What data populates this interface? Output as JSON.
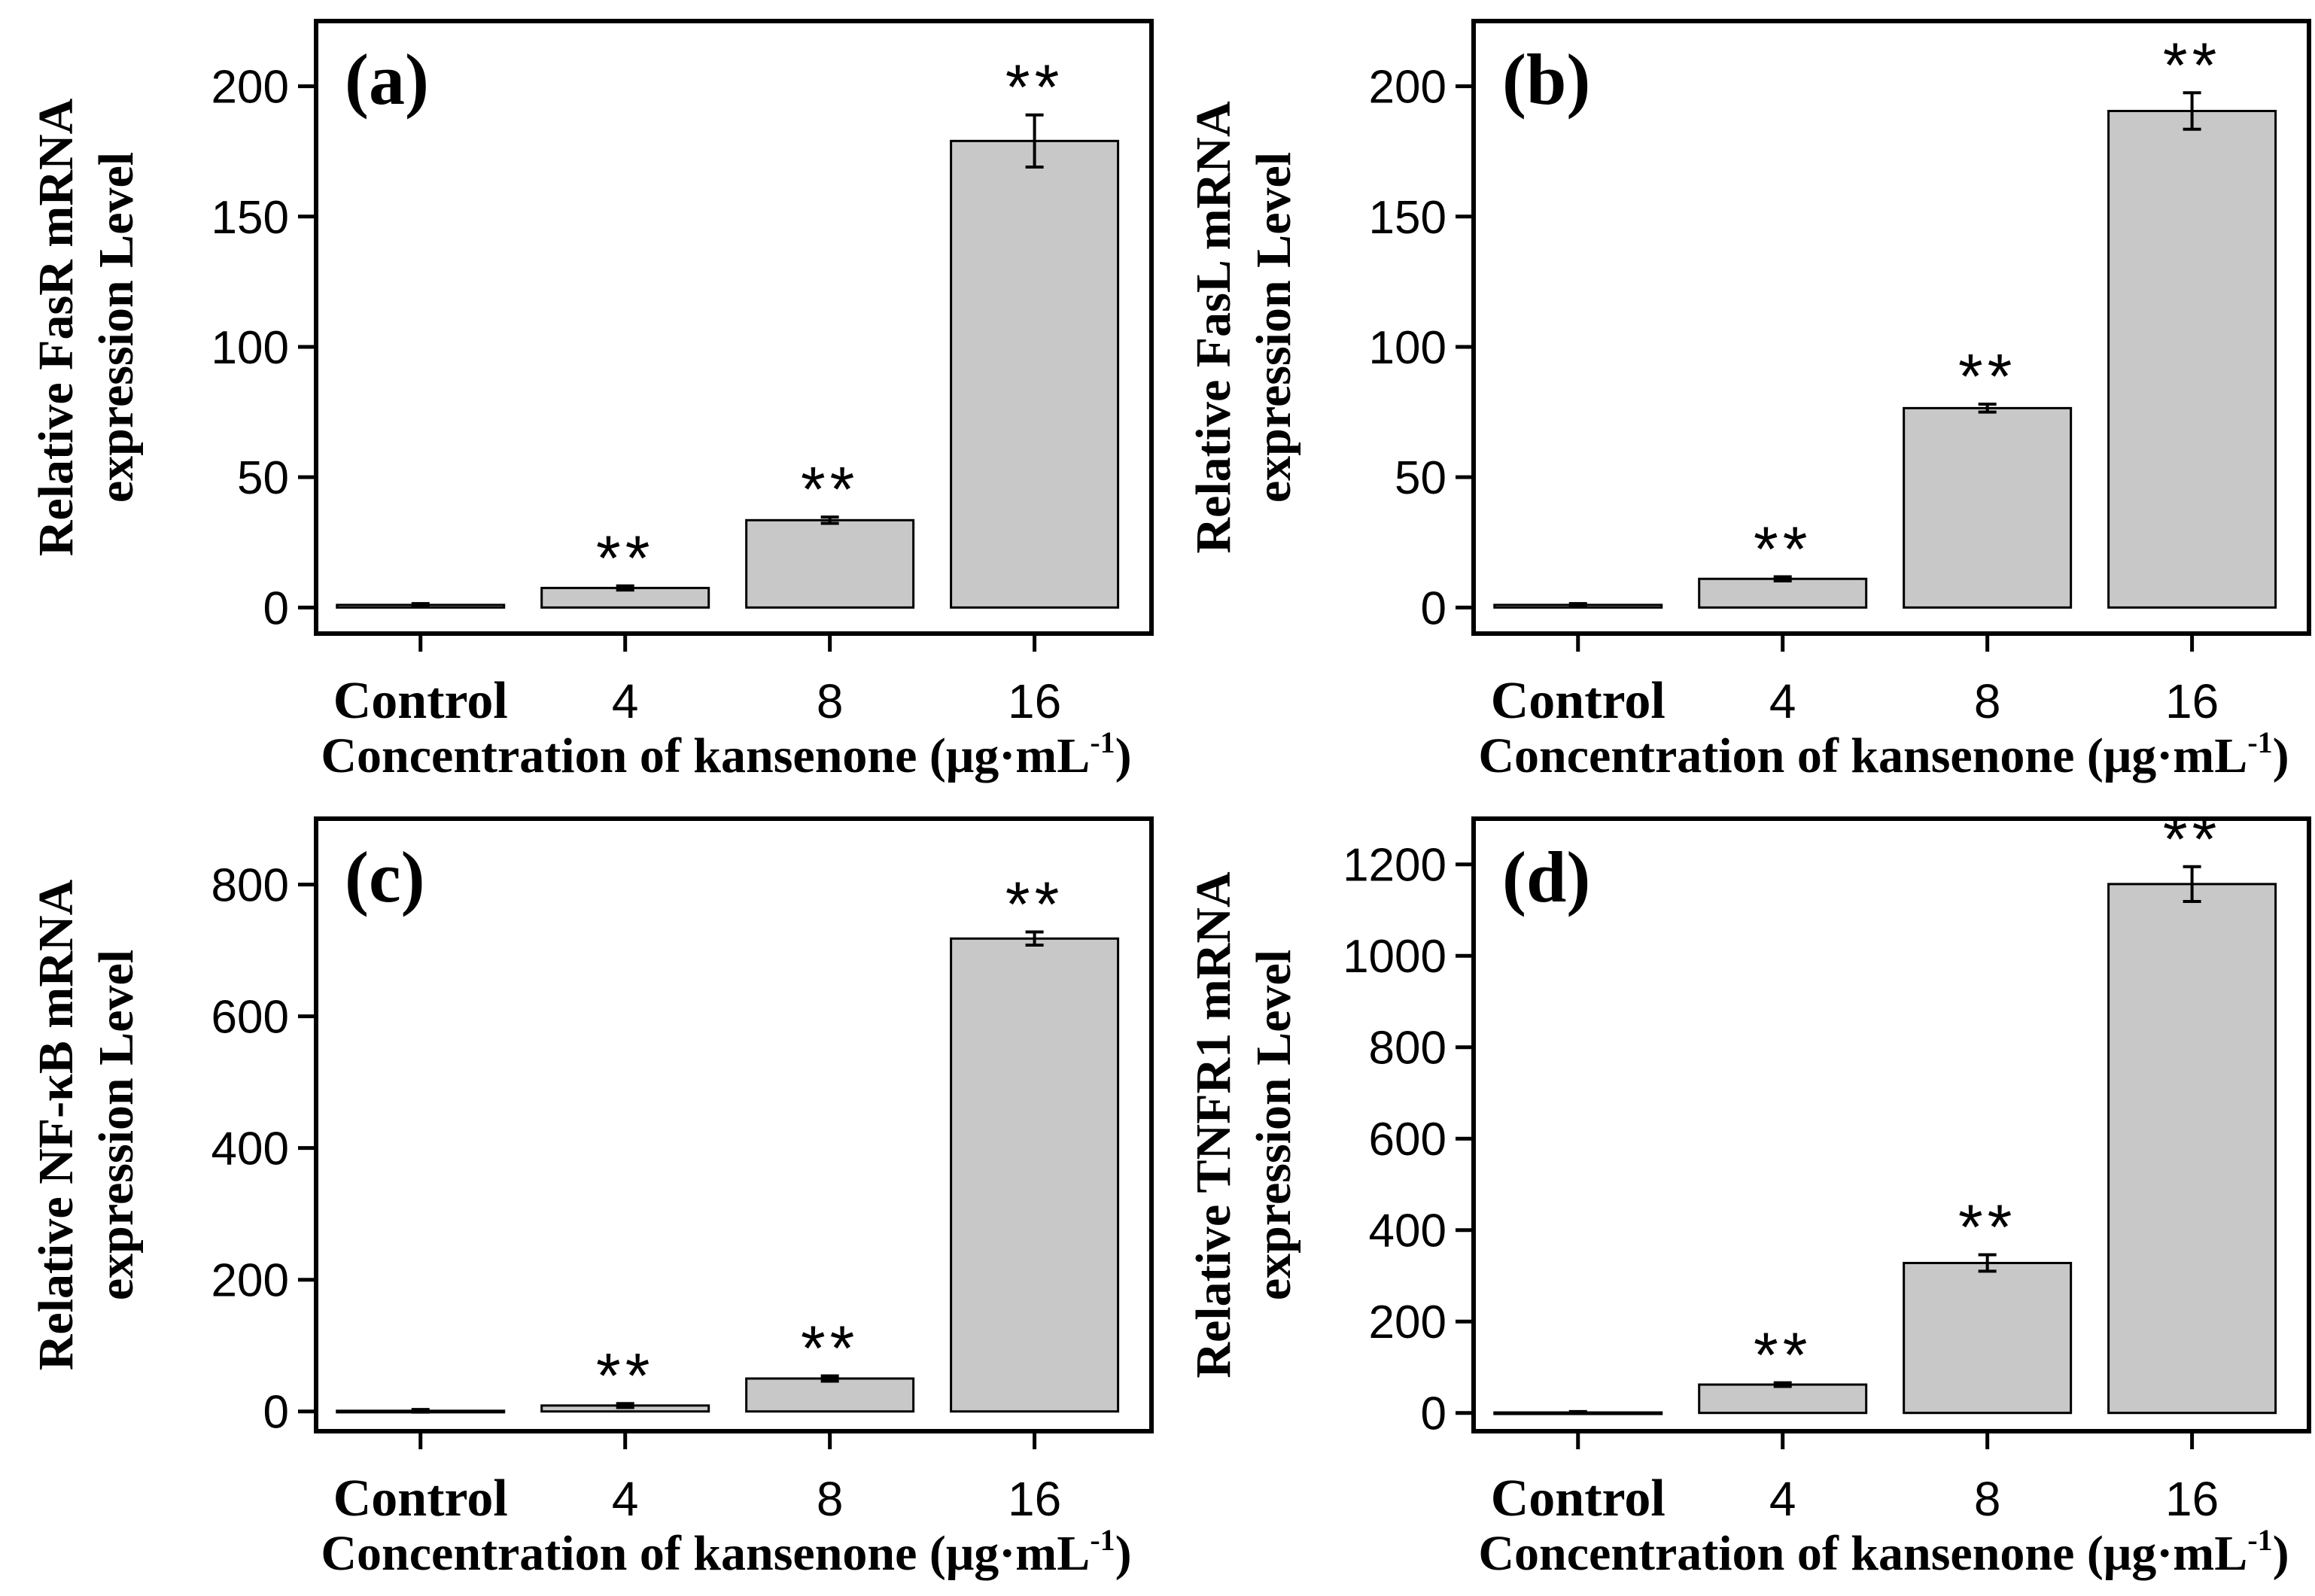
{
  "figure": {
    "x_title_main": "Concentration of kansenone (μg·mL",
    "x_title_sup": "-1",
    "x_title_close": ")"
  },
  "chart_data": [
    {
      "type": "bar",
      "panel": "(a)",
      "ylabel_line1": "Relative FasR mRNA",
      "ylabel_line2": "expression Level",
      "categories": [
        "Control",
        "4",
        "8",
        "16"
      ],
      "values": [
        1,
        7.5,
        33.5,
        179
      ],
      "errors": [
        0.5,
        0.8,
        1.2,
        10
      ],
      "significance": [
        "",
        "**",
        "**",
        "**"
      ],
      "ylim": [
        -10,
        225
      ],
      "yticks": [
        0,
        50,
        100,
        150,
        200
      ],
      "bar_color": "#c8c8c8"
    },
    {
      "type": "bar",
      "panel": "(b)",
      "ylabel_line1": "Relative FasL mRNA",
      "ylabel_line2": "expression Level",
      "categories": [
        "Control",
        "4",
        "8",
        "16"
      ],
      "values": [
        1,
        11,
        76.5,
        190.5
      ],
      "errors": [
        0.5,
        0.8,
        1.5,
        7
      ],
      "significance": [
        "",
        "**",
        "**",
        "**"
      ],
      "ylim": [
        -10,
        225
      ],
      "yticks": [
        0,
        50,
        100,
        150,
        200
      ],
      "bar_color": "#c8c8c8"
    },
    {
      "type": "bar",
      "panel": "(c)",
      "ylabel_line1": "Relative NF-κB mRNA",
      "ylabel_line2": "expression Level",
      "categories": [
        "Control",
        "4",
        "8",
        "16"
      ],
      "values": [
        1,
        9,
        50,
        718
      ],
      "errors": [
        2,
        3,
        4,
        10
      ],
      "significance": [
        "",
        "**",
        "**",
        "**"
      ],
      "ylim": [
        -30,
        900
      ],
      "yticks": [
        0,
        200,
        400,
        600,
        800
      ],
      "bar_color": "#c8c8c8"
    },
    {
      "type": "bar",
      "panel": "(d)",
      "ylabel_line1": "Relative TNFR1 mRNA",
      "ylabel_line2": "expression Level",
      "categories": [
        "Control",
        "4",
        "8",
        "16"
      ],
      "values": [
        1,
        62,
        328,
        1157
      ],
      "errors": [
        2,
        4,
        18,
        38
      ],
      "significance": [
        "",
        "**",
        "**",
        "**"
      ],
      "ylim": [
        -40,
        1300
      ],
      "yticks": [
        0,
        200,
        400,
        600,
        800,
        1000,
        1200
      ],
      "bar_color": "#c8c8c8"
    }
  ]
}
